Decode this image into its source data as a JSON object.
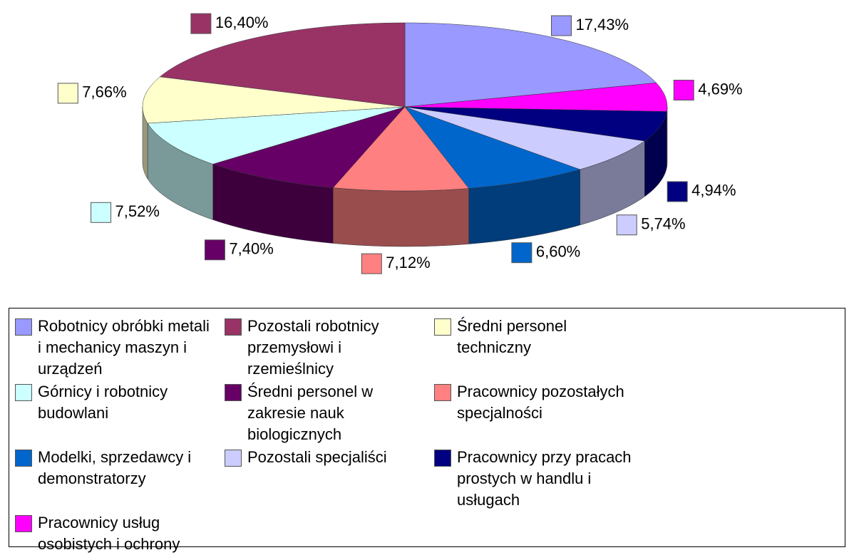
{
  "chart_data": {
    "type": "pie3d",
    "categories": [
      "Robotnicy obróbki metali i mechanicy maszyn i urządzeń",
      "Pozostali robotnicy przemysłowi i rzemieślnicy",
      "Średni personel techniczny",
      "Górnicy i robotnicy budowlani",
      "Średni personel w zakresie nauk biologicznych",
      "Pracownicy pozostałych specjalności",
      "Modelki, sprzedawcy i demonstratorzy",
      "Pozostali specjaliści",
      "Pracownicy przy pracach prostych w handlu i usługach",
      "Pracownicy usług osobistych i ochrony"
    ],
    "values": [
      17.43,
      16.4,
      7.66,
      7.52,
      7.4,
      7.12,
      6.6,
      5.74,
      4.94,
      4.69
    ],
    "value_labels": [
      "17,43%",
      "16,40%",
      "7,66%",
      "7,52%",
      "7,40%",
      "7,12%",
      "6,60%",
      "5,74%",
      "4,94%",
      "4,69%"
    ],
    "colors": [
      "#9999ff",
      "#993366",
      "#ffffcc",
      "#ccffff",
      "#660066",
      "#ff8080",
      "#0066cc",
      "#ccccff",
      "#000080",
      "#ff00ff"
    ],
    "legend": "bottom"
  }
}
